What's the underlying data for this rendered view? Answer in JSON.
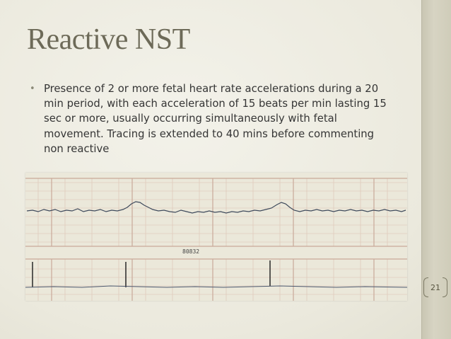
{
  "slide": {
    "title": "Reactive NST",
    "bullet_marker": "•",
    "bullet_text": "Presence of 2 or more fetal heart rate accelerations during a 20 min period, with each acceleration of 15 beats per min lasting 15 sec or more, usually occurring simultaneously with fetal movement. Tracing is extended to 40 mins before commenting non reactive",
    "page_number": "21"
  },
  "tracing": {
    "paper_label": "80832",
    "paper_color": "#e9e6d8",
    "grid_color": "#d9b7a8",
    "trace_color": "#3f4a5c"
  }
}
